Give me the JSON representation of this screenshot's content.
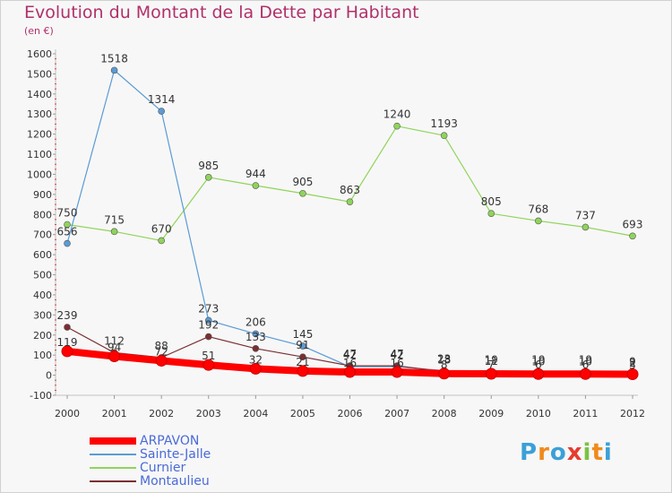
{
  "title": "Evolution du Montant de la Dette par Habitant",
  "subtitle": "(en €)",
  "logo": {
    "text": "Proxiti",
    "letters": [
      "P",
      "r",
      "o",
      "x",
      "i",
      "t",
      "i"
    ],
    "colors": [
      "#3aa0d8",
      "#f08a1c",
      "#3aa0d8",
      "#e63b2e",
      "#7cc242",
      "#f08a1c",
      "#3aa0d8"
    ]
  },
  "chart_data": {
    "type": "line",
    "x": [
      "2000",
      "2001",
      "2002",
      "2003",
      "2004",
      "2005",
      "2006",
      "2007",
      "2008",
      "2009",
      "2010",
      "2011",
      "2012"
    ],
    "ylim": [
      -100,
      1600
    ],
    "yticks": [
      -100,
      0,
      100,
      200,
      300,
      400,
      500,
      600,
      700,
      800,
      900,
      1000,
      1100,
      1200,
      1300,
      1400,
      1500,
      1600
    ],
    "grid": false,
    "legend": "bottom-left",
    "series": [
      {
        "name": "ARPAVON",
        "color": "#ff0000",
        "values": [
          119,
          94,
          72,
          51,
          32,
          21,
          16,
          16,
          8,
          7,
          6,
          6,
          5
        ]
      },
      {
        "name": "Sainte-Jalle",
        "color": "#5b9bd5",
        "values": [
          656,
          1518,
          1314,
          273,
          206,
          145,
          42,
          42,
          23,
          19,
          19,
          19,
          9
        ]
      },
      {
        "name": "Curnier",
        "color": "#8fd45a",
        "values": [
          750,
          715,
          670,
          985,
          944,
          905,
          863,
          1240,
          1193,
          805,
          768,
          737,
          693
        ]
      },
      {
        "name": "Montaulieu",
        "color": "#7b2e32",
        "values": [
          239,
          112,
          88,
          192,
          133,
          91,
          47,
          47,
          18,
          11,
          10,
          10,
          2
        ]
      }
    ],
    "point_labels": [
      [
        "119",
        "94",
        "72",
        "51",
        "32",
        "21",
        "16",
        "16",
        "8",
        "7",
        "6",
        "6",
        "5"
      ],
      [
        "656",
        "1518",
        "1314",
        "273",
        "206",
        "145",
        "42",
        "42",
        "23",
        "19",
        "19",
        "19",
        "9"
      ],
      [
        "750",
        "715",
        "670",
        "985",
        "944",
        "905",
        "863",
        "1240",
        "1193",
        "805",
        "768",
        "737",
        "693"
      ],
      [
        "239",
        "112",
        "88",
        "192",
        "133",
        "91",
        "47",
        "47",
        "18",
        "11",
        "10",
        "10",
        "2"
      ]
    ]
  }
}
